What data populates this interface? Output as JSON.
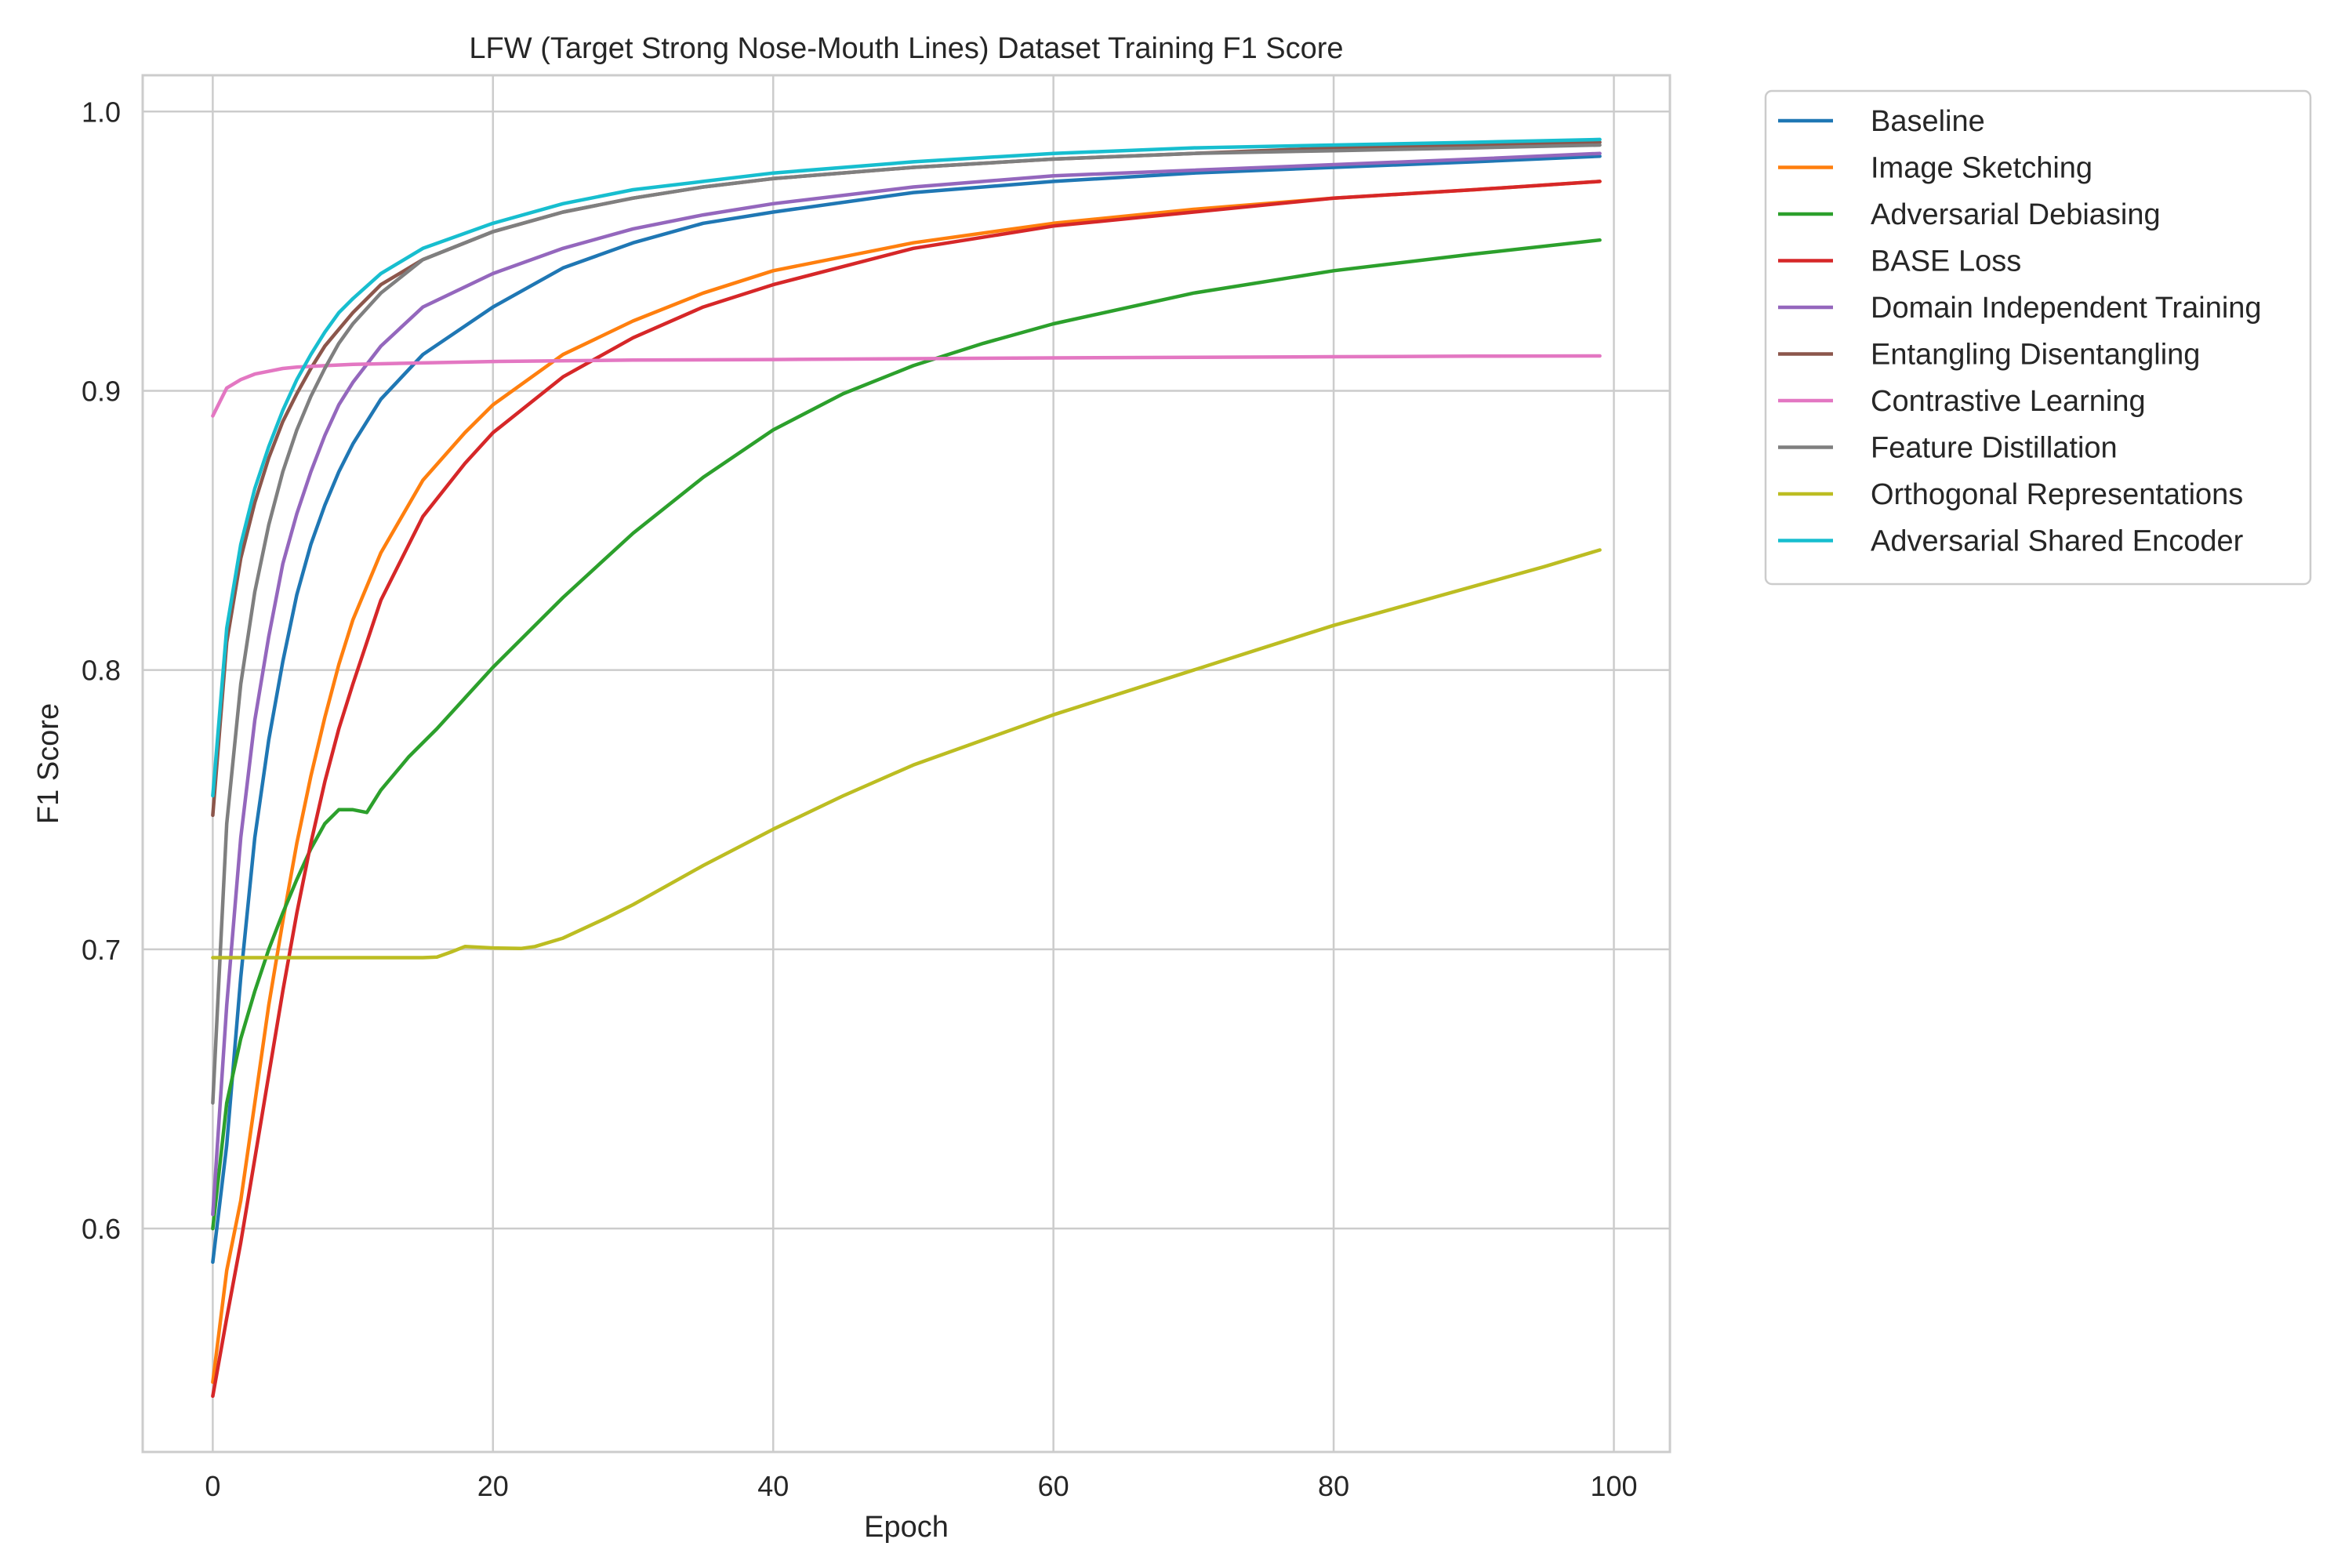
{
  "chart_data": {
    "type": "line",
    "title": "LFW (Target Strong Nose-Mouth Lines) Dataset Training F1 Score",
    "xlabel": "Epoch",
    "ylabel": "F1 Score",
    "xlim": [
      -5,
      104
    ],
    "ylim": [
      0.52,
      1.013
    ],
    "xticks": [
      0,
      20,
      40,
      60,
      80,
      100
    ],
    "yticks": [
      0.6,
      0.7,
      0.8,
      0.9,
      1.0
    ],
    "xtick_labels": [
      "0",
      "20",
      "40",
      "60",
      "80",
      "100"
    ],
    "ytick_labels": [
      "0.6",
      "0.7",
      "0.8",
      "0.9",
      "1.0"
    ],
    "grid": true,
    "legend_position": "outside-top-right",
    "series": [
      {
        "name": "Baseline",
        "color": "#1f77b4",
        "points": [
          [
            0,
            0.588
          ],
          [
            1,
            0.63
          ],
          [
            2,
            0.69
          ],
          [
            3,
            0.74
          ],
          [
            4,
            0.775
          ],
          [
            5,
            0.803
          ],
          [
            6,
            0.827
          ],
          [
            7,
            0.845
          ],
          [
            8,
            0.859
          ],
          [
            9,
            0.871
          ],
          [
            10,
            0.881
          ],
          [
            12,
            0.897
          ],
          [
            15,
            0.913
          ],
          [
            20,
            0.93
          ],
          [
            25,
            0.944
          ],
          [
            30,
            0.953
          ],
          [
            35,
            0.96
          ],
          [
            40,
            0.964
          ],
          [
            50,
            0.971
          ],
          [
            60,
            0.975
          ],
          [
            70,
            0.978
          ],
          [
            80,
            0.98
          ],
          [
            90,
            0.982
          ],
          [
            99,
            0.984
          ]
        ]
      },
      {
        "name": "Image Sketching",
        "color": "#ff7f0e",
        "points": [
          [
            0,
            0.545
          ],
          [
            1,
            0.585
          ],
          [
            2,
            0.61
          ],
          [
            3,
            0.645
          ],
          [
            4,
            0.68
          ],
          [
            5,
            0.71
          ],
          [
            6,
            0.738
          ],
          [
            7,
            0.762
          ],
          [
            8,
            0.783
          ],
          [
            9,
            0.802
          ],
          [
            10,
            0.818
          ],
          [
            12,
            0.842
          ],
          [
            15,
            0.868
          ],
          [
            18,
            0.885
          ],
          [
            20,
            0.895
          ],
          [
            25,
            0.913
          ],
          [
            30,
            0.925
          ],
          [
            35,
            0.935
          ],
          [
            40,
            0.943
          ],
          [
            50,
            0.953
          ],
          [
            60,
            0.96
          ],
          [
            70,
            0.965
          ],
          [
            80,
            0.969
          ],
          [
            90,
            0.972
          ],
          [
            99,
            0.975
          ]
        ]
      },
      {
        "name": "Adversarial Debiasing",
        "color": "#2ca02c",
        "points": [
          [
            0,
            0.6
          ],
          [
            1,
            0.645
          ],
          [
            2,
            0.668
          ],
          [
            3,
            0.685
          ],
          [
            4,
            0.7
          ],
          [
            5,
            0.713
          ],
          [
            6,
            0.725
          ],
          [
            7,
            0.736
          ],
          [
            8,
            0.745
          ],
          [
            9,
            0.75
          ],
          [
            10,
            0.75
          ],
          [
            11,
            0.749
          ],
          [
            12,
            0.757
          ],
          [
            14,
            0.769
          ],
          [
            16,
            0.779
          ],
          [
            18,
            0.79
          ],
          [
            20,
            0.801
          ],
          [
            25,
            0.826
          ],
          [
            30,
            0.849
          ],
          [
            35,
            0.869
          ],
          [
            40,
            0.886
          ],
          [
            45,
            0.899
          ],
          [
            50,
            0.909
          ],
          [
            55,
            0.917
          ],
          [
            60,
            0.924
          ],
          [
            70,
            0.935
          ],
          [
            80,
            0.943
          ],
          [
            90,
            0.949
          ],
          [
            99,
            0.954
          ]
        ]
      },
      {
        "name": "BASE Loss",
        "color": "#d62728",
        "points": [
          [
            0,
            0.54
          ],
          [
            1,
            0.568
          ],
          [
            2,
            0.595
          ],
          [
            3,
            0.625
          ],
          [
            4,
            0.655
          ],
          [
            5,
            0.685
          ],
          [
            6,
            0.713
          ],
          [
            7,
            0.738
          ],
          [
            8,
            0.76
          ],
          [
            9,
            0.779
          ],
          [
            10,
            0.795
          ],
          [
            12,
            0.825
          ],
          [
            15,
            0.855
          ],
          [
            18,
            0.874
          ],
          [
            20,
            0.885
          ],
          [
            25,
            0.905
          ],
          [
            30,
            0.919
          ],
          [
            35,
            0.93
          ],
          [
            40,
            0.938
          ],
          [
            50,
            0.951
          ],
          [
            60,
            0.959
          ],
          [
            70,
            0.964
          ],
          [
            80,
            0.969
          ],
          [
            90,
            0.972
          ],
          [
            99,
            0.975
          ]
        ]
      },
      {
        "name": "Domain Independent Training",
        "color": "#9467bd",
        "points": [
          [
            0,
            0.605
          ],
          [
            1,
            0.68
          ],
          [
            2,
            0.74
          ],
          [
            3,
            0.782
          ],
          [
            4,
            0.812
          ],
          [
            5,
            0.838
          ],
          [
            6,
            0.856
          ],
          [
            7,
            0.871
          ],
          [
            8,
            0.884
          ],
          [
            9,
            0.895
          ],
          [
            10,
            0.903
          ],
          [
            12,
            0.916
          ],
          [
            15,
            0.93
          ],
          [
            20,
            0.942
          ],
          [
            25,
            0.951
          ],
          [
            30,
            0.958
          ],
          [
            35,
            0.963
          ],
          [
            40,
            0.967
          ],
          [
            50,
            0.973
          ],
          [
            60,
            0.977
          ],
          [
            70,
            0.979
          ],
          [
            80,
            0.981
          ],
          [
            90,
            0.983
          ],
          [
            99,
            0.985
          ]
        ]
      },
      {
        "name": "Entangling Disentangling",
        "color": "#8c564b",
        "points": [
          [
            0,
            0.748
          ],
          [
            1,
            0.81
          ],
          [
            2,
            0.84
          ],
          [
            3,
            0.86
          ],
          [
            4,
            0.876
          ],
          [
            5,
            0.889
          ],
          [
            6,
            0.899
          ],
          [
            7,
            0.908
          ],
          [
            8,
            0.916
          ],
          [
            9,
            0.922
          ],
          [
            10,
            0.928
          ],
          [
            12,
            0.938
          ],
          [
            15,
            0.947
          ],
          [
            20,
            0.957
          ],
          [
            25,
            0.964
          ],
          [
            30,
            0.969
          ],
          [
            35,
            0.973
          ],
          [
            40,
            0.976
          ],
          [
            50,
            0.98
          ],
          [
            60,
            0.983
          ],
          [
            70,
            0.985
          ],
          [
            80,
            0.987
          ],
          [
            90,
            0.988
          ],
          [
            99,
            0.989
          ]
        ]
      },
      {
        "name": "Contrastive Learning",
        "color": "#e377c2",
        "points": [
          [
            0,
            0.891
          ],
          [
            1,
            0.901
          ],
          [
            2,
            0.904
          ],
          [
            3,
            0.906
          ],
          [
            4,
            0.907
          ],
          [
            5,
            0.908
          ],
          [
            6,
            0.9085
          ],
          [
            8,
            0.909
          ],
          [
            10,
            0.9095
          ],
          [
            15,
            0.91
          ],
          [
            20,
            0.9105
          ],
          [
            30,
            0.911
          ],
          [
            40,
            0.9112
          ],
          [
            50,
            0.9115
          ],
          [
            60,
            0.9118
          ],
          [
            70,
            0.912
          ],
          [
            80,
            0.9122
          ],
          [
            90,
            0.9124
          ],
          [
            99,
            0.9125
          ]
        ]
      },
      {
        "name": "Feature Distillation",
        "color": "#7f7f7f",
        "points": [
          [
            0,
            0.645
          ],
          [
            1,
            0.745
          ],
          [
            2,
            0.795
          ],
          [
            3,
            0.828
          ],
          [
            4,
            0.852
          ],
          [
            5,
            0.871
          ],
          [
            6,
            0.886
          ],
          [
            7,
            0.898
          ],
          [
            8,
            0.908
          ],
          [
            9,
            0.917
          ],
          [
            10,
            0.924
          ],
          [
            12,
            0.935
          ],
          [
            15,
            0.947
          ],
          [
            20,
            0.957
          ],
          [
            25,
            0.964
          ],
          [
            30,
            0.969
          ],
          [
            35,
            0.973
          ],
          [
            40,
            0.976
          ],
          [
            50,
            0.98
          ],
          [
            60,
            0.983
          ],
          [
            70,
            0.985
          ],
          [
            80,
            0.986
          ],
          [
            90,
            0.987
          ],
          [
            99,
            0.988
          ]
        ]
      },
      {
        "name": "Orthogonal Representations",
        "color": "#bcbd22",
        "points": [
          [
            0,
            0.697
          ],
          [
            5,
            0.697
          ],
          [
            10,
            0.697
          ],
          [
            15,
            0.697
          ],
          [
            16,
            0.6972
          ],
          [
            17,
            0.699
          ],
          [
            18,
            0.701
          ],
          [
            20,
            0.7005
          ],
          [
            22,
            0.7003
          ],
          [
            23,
            0.701
          ],
          [
            25,
            0.704
          ],
          [
            28,
            0.711
          ],
          [
            30,
            0.716
          ],
          [
            35,
            0.73
          ],
          [
            40,
            0.743
          ],
          [
            45,
            0.755
          ],
          [
            50,
            0.766
          ],
          [
            55,
            0.775
          ],
          [
            60,
            0.784
          ],
          [
            65,
            0.792
          ],
          [
            70,
            0.8
          ],
          [
            75,
            0.808
          ],
          [
            80,
            0.816
          ],
          [
            85,
            0.823
          ],
          [
            90,
            0.83
          ],
          [
            95,
            0.837
          ],
          [
            99,
            0.843
          ]
        ]
      },
      {
        "name": "Adversarial Shared Encoder",
        "color": "#17becf",
        "points": [
          [
            0,
            0.755
          ],
          [
            1,
            0.815
          ],
          [
            2,
            0.845
          ],
          [
            3,
            0.865
          ],
          [
            4,
            0.88
          ],
          [
            5,
            0.893
          ],
          [
            6,
            0.904
          ],
          [
            7,
            0.913
          ],
          [
            8,
            0.921
          ],
          [
            9,
            0.928
          ],
          [
            10,
            0.933
          ],
          [
            12,
            0.942
          ],
          [
            15,
            0.951
          ],
          [
            20,
            0.96
          ],
          [
            25,
            0.967
          ],
          [
            30,
            0.972
          ],
          [
            35,
            0.975
          ],
          [
            40,
            0.978
          ],
          [
            50,
            0.982
          ],
          [
            60,
            0.985
          ],
          [
            70,
            0.987
          ],
          [
            80,
            0.988
          ],
          [
            90,
            0.989
          ],
          [
            99,
            0.99
          ]
        ]
      }
    ]
  }
}
